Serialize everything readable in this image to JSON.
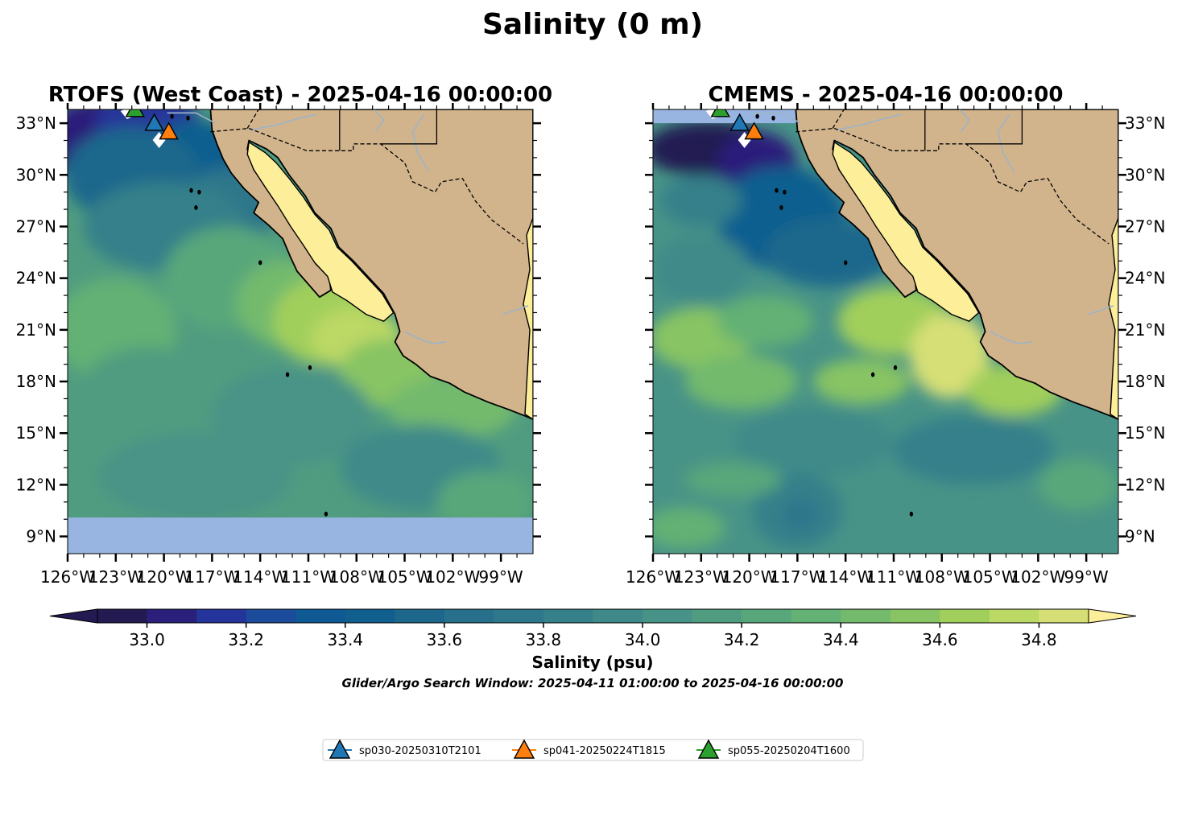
{
  "figure": {
    "suptitle": "Salinity (0 m)"
  },
  "panels": [
    {
      "title": "RTOFS (West Coast) - 2025-04-16 00:00:00",
      "model": "RTOFS",
      "lat_axis_side": "left",
      "no_data_band_south_of_lat": 10.1
    },
    {
      "title": "CMEMS - 2025-04-16 00:00:00",
      "model": "CMEMS",
      "lat_axis_side": "right",
      "no_data_band_north_of_lat": 33.0
    }
  ],
  "axes": {
    "lon_ticks": [
      "126°W",
      "123°W",
      "120°W",
      "117°W",
      "114°W",
      "111°W",
      "108°W",
      "105°W",
      "102°W",
      "99°W"
    ],
    "lat_ticks": [
      "9°N",
      "12°N",
      "15°N",
      "18°N",
      "21°N",
      "24°N",
      "27°N",
      "30°N",
      "33°N"
    ],
    "lon_range": [
      -126,
      -97
    ],
    "lat_range": [
      8,
      33.8
    ]
  },
  "colorbar": {
    "label": "Salinity (psu)",
    "tick_labels": [
      "33.0",
      "33.2",
      "33.4",
      "33.6",
      "33.8",
      "34.0",
      "34.2",
      "34.4",
      "34.6",
      "34.8"
    ],
    "vmin": 32.9,
    "vmax": 34.9,
    "extend": "both",
    "colormap": "haline",
    "colors": [
      "#231a52",
      "#2a1f7a",
      "#25349a",
      "#1b4c9c",
      "#0f5a95",
      "#115f8f",
      "#1d678c",
      "#286f8b",
      "#2f778b",
      "#36808a",
      "#3f8a89",
      "#489387",
      "#509c80",
      "#58a77a",
      "#64b175",
      "#73ba6d",
      "#88c463",
      "#a1cf5c",
      "#bcd865",
      "#d6df76"
    ],
    "under_color": "#231a52",
    "over_color": "#fdee9a"
  },
  "search_window": "Glider/Argo Search Window: 2025-04-11 01:00:00 to 2025-04-16 00:00:00",
  "gliders": [
    {
      "name": "sp030-20250310T2101",
      "color": "#1f77b4",
      "lon": -120.6,
      "lat": 33.0
    },
    {
      "name": "sp041-20250224T1815",
      "color": "#ff7f0e",
      "lon": -119.7,
      "lat": 32.5
    },
    {
      "name": "sp055-20250204T1600",
      "color": "#2ca02c",
      "lon": -121.8,
      "lat": 33.8
    }
  ],
  "map_colors": {
    "land": "#d2b48c",
    "gulf_fill": "#fdee9a",
    "no_data": "#98b4e0",
    "rivers": "#9db3c8"
  }
}
